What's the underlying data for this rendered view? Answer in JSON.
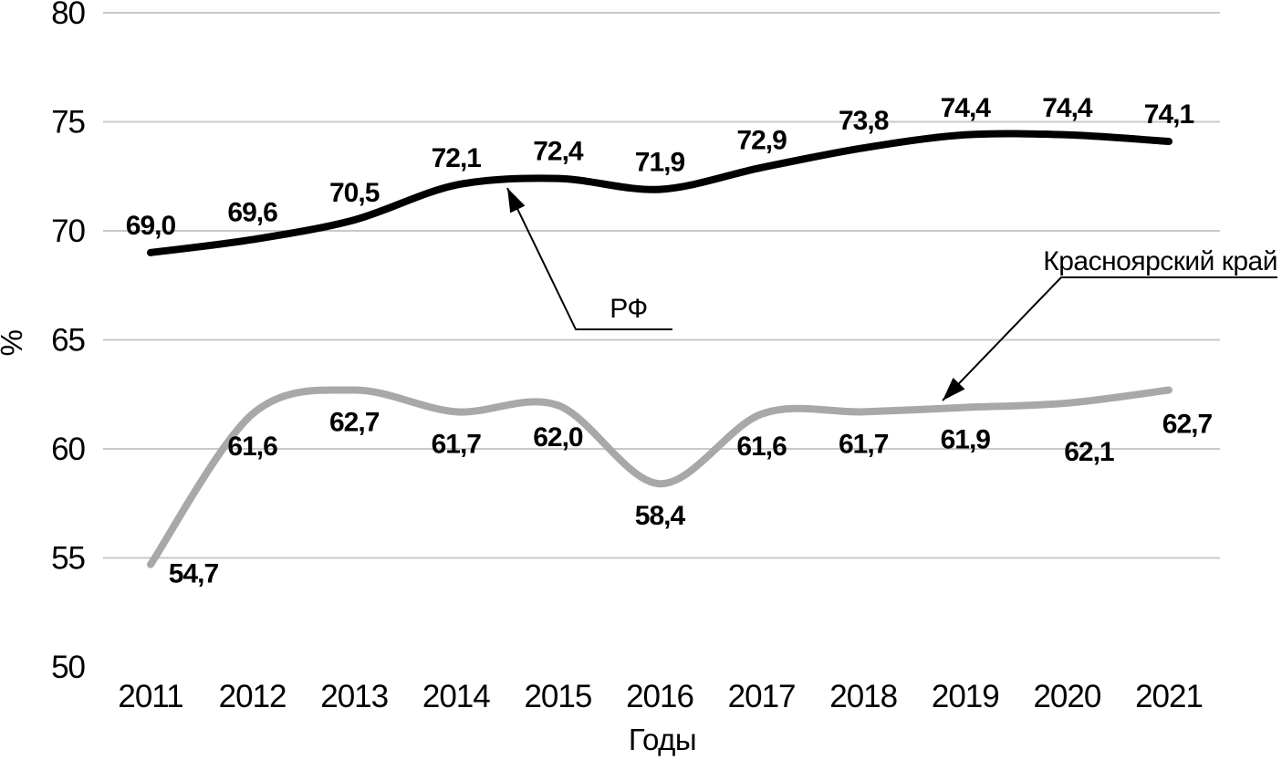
{
  "chart_data": {
    "type": "line",
    "title": "",
    "xlabel": "Годы",
    "ylabel": "%",
    "categories": [
      "2011",
      "2012",
      "2013",
      "2014",
      "2015",
      "2016",
      "2017",
      "2018",
      "2019",
      "2020",
      "2021"
    ],
    "ylim": [
      50,
      80
    ],
    "yticks": [
      80,
      75,
      70,
      65,
      60,
      55,
      50
    ],
    "grid": "horizontal gridlines at 55,60,65,70,75,80 (no line at 50)",
    "legend": "arrow callout labels inside plot area",
    "decimal_separator": ",",
    "series": [
      {
        "name": "РФ",
        "color": "#000000",
        "line_width": 8,
        "values": [
          69.0,
          69.6,
          70.5,
          72.1,
          72.4,
          71.9,
          72.9,
          73.8,
          74.4,
          74.4,
          74.1
        ],
        "point_labels": [
          "69,0",
          "69,6",
          "70,5",
          "72,1",
          "72,4",
          "71,9",
          "72,9",
          "73,8",
          "74,4",
          "74,4",
          "74,1"
        ]
      },
      {
        "name": "Красноярский край",
        "color": "#a8a8a8",
        "line_width": 8,
        "values": [
          54.7,
          61.6,
          62.7,
          61.7,
          62.0,
          58.4,
          61.6,
          61.7,
          61.9,
          62.1,
          62.7
        ],
        "point_labels": [
          "54,7",
          "61,6",
          "62,7",
          "61,7",
          "62,0",
          "58,4",
          "61,6",
          "61,7",
          "61,9",
          "62,1",
          "62,7"
        ]
      }
    ],
    "annotations": [
      {
        "text": "РФ",
        "target_series": "РФ"
      },
      {
        "text": "Красноярский край",
        "target_series": "Красноярский край"
      }
    ],
    "colors": {
      "grid": "#c9c9c9",
      "text": "#000000",
      "series_rf": "#000000",
      "series_krasnoyarsk": "#a8a8a8"
    }
  }
}
